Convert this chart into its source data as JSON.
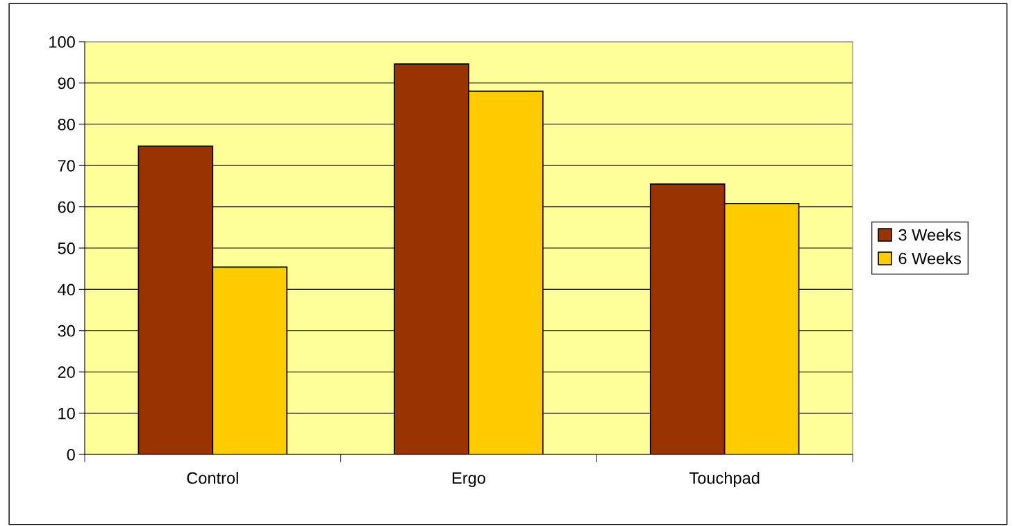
{
  "chart_data": {
    "type": "bar",
    "categories": [
      "Control",
      "Ergo",
      "Touchpad"
    ],
    "series": [
      {
        "name": "3 Weeks",
        "color": "#993300",
        "values": [
          74.7,
          94.6,
          65.5
        ]
      },
      {
        "name": "6 Weeks",
        "color": "#ffcc00",
        "values": [
          45.4,
          88.0,
          60.8
        ]
      }
    ],
    "ylim": [
      0,
      100
    ],
    "yticks": [
      0,
      10,
      20,
      30,
      40,
      50,
      60,
      70,
      80,
      90,
      100
    ],
    "grid": "y",
    "legend": "right"
  }
}
